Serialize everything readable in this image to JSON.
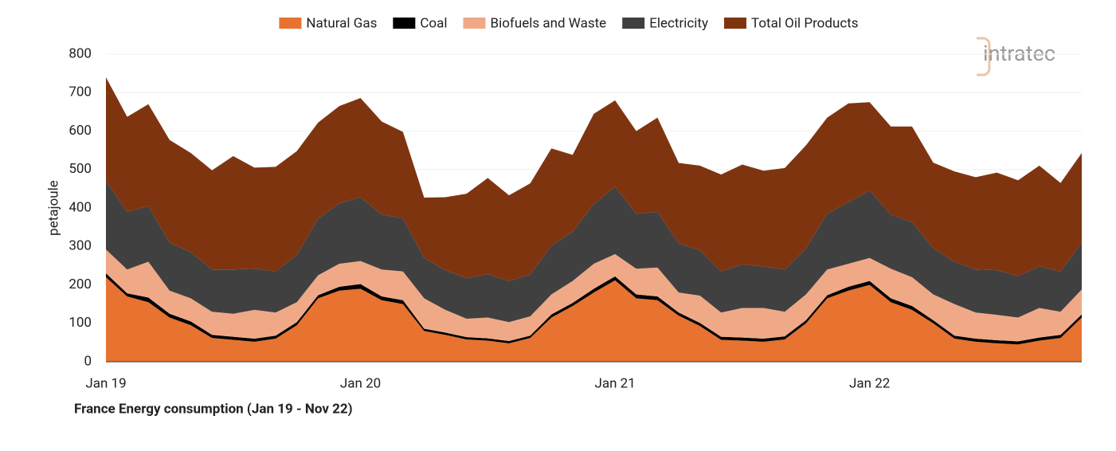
{
  "chart_data": {
    "type": "stacked-area",
    "title": "France Energy consumption (Jan 19 - Nov 22)",
    "y_label": "petajoule",
    "logo": "intratec",
    "categories": [
      "Jan 19",
      null,
      null,
      null,
      null,
      null,
      null,
      null,
      null,
      null,
      null,
      null,
      "Jan 20",
      null,
      null,
      null,
      null,
      null,
      null,
      null,
      null,
      null,
      null,
      null,
      "Jan 21",
      null,
      null,
      null,
      null,
      null,
      null,
      null,
      null,
      null,
      null,
      null,
      "Jan 22",
      null,
      null,
      null,
      null,
      null,
      null,
      null,
      null,
      null,
      null
    ],
    "series": [
      {
        "name": "Natural Gas",
        "color": "#e8722f",
        "values": [
          220,
          170,
          155,
          115,
          95,
          62,
          57,
          52,
          60,
          95,
          165,
          185,
          190,
          160,
          150,
          80,
          70,
          58,
          55,
          48,
          62,
          115,
          145,
          180,
          212,
          165,
          160,
          120,
          93,
          57,
          55,
          52,
          58,
          100,
          165,
          185,
          200,
          155,
          135,
          100,
          60,
          52,
          48,
          45,
          55,
          62,
          115
        ]
      },
      {
        "name": "Coal",
        "color": "#000000",
        "values": [
          10,
          8,
          12,
          10,
          10,
          8,
          8,
          8,
          8,
          8,
          8,
          10,
          12,
          10,
          10,
          6,
          6,
          6,
          6,
          6,
          6,
          8,
          8,
          10,
          10,
          10,
          10,
          8,
          8,
          8,
          8,
          8,
          8,
          8,
          8,
          10,
          10,
          10,
          10,
          8,
          8,
          8,
          8,
          8,
          8,
          8,
          8
        ]
      },
      {
        "name": "Biofuels and Waste",
        "color": "#f0a987",
        "values": [
          62,
          62,
          93,
          60,
          60,
          60,
          60,
          75,
          60,
          52,
          52,
          60,
          60,
          70,
          75,
          79,
          59,
          48,
          54,
          49,
          50,
          52,
          57,
          65,
          58,
          67,
          75,
          52,
          71,
          63,
          77,
          80,
          64,
          67,
          67,
          60,
          60,
          77,
          75,
          67,
          82,
          68,
          66,
          62,
          77,
          60,
          65
        ]
      },
      {
        "name": "Electricity",
        "color": "#404040",
        "values": [
          178,
          150,
          145,
          125,
          120,
          110,
          115,
          107,
          107,
          123,
          147,
          157,
          166,
          143,
          138,
          105,
          103,
          105,
          113,
          107,
          109,
          127,
          128,
          155,
          175,
          143,
          145,
          128,
          118,
          107,
          113,
          108,
          110,
          120,
          145,
          160,
          175,
          141,
          143,
          120,
          110,
          112,
          116,
          108,
          108,
          105,
          122
        ]
      },
      {
        "name": "Total Oil Products",
        "color": "#7f3410",
        "values": [
          270,
          247,
          265,
          267,
          258,
          258,
          295,
          263,
          272,
          270,
          250,
          253,
          258,
          242,
          225,
          157,
          190,
          220,
          250,
          223,
          237,
          253,
          200,
          235,
          225,
          215,
          245,
          209,
          220,
          252,
          260,
          249,
          264,
          268,
          250,
          257,
          230,
          229,
          249,
          223,
          235,
          240,
          254,
          249,
          262,
          230,
          233
        ]
      }
    ],
    "ylim": [
      0,
      800
    ],
    "yticks": [
      0,
      100,
      200,
      300,
      400,
      500,
      600,
      700,
      800
    ],
    "grid": true,
    "legend": "top"
  }
}
